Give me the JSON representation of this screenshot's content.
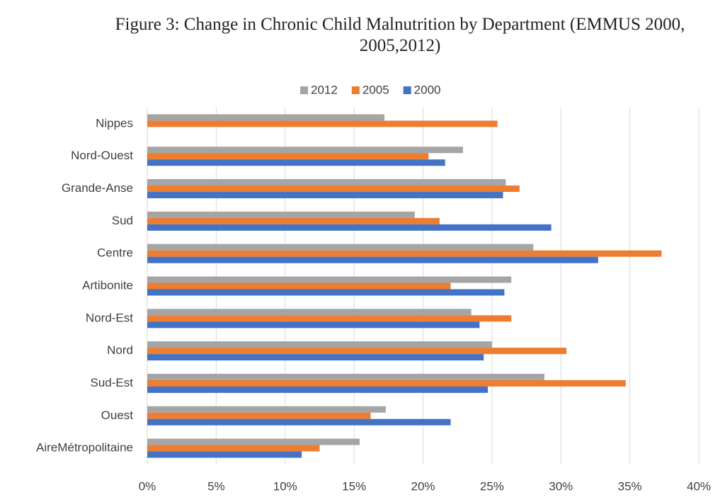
{
  "chart_data": {
    "type": "hbar",
    "title": "Figure 3:  Change in Chronic Child Malnutrition by Department (EMMUS 2000, 2005,2012)",
    "categories": [
      "Nippes",
      "Nord-Ouest",
      "Grande-Anse",
      "Sud",
      "Centre",
      "Artibonite",
      "Nord-Est",
      "Nord",
      "Sud-Est",
      "Ouest",
      "AireMétropolitaine"
    ],
    "series": [
      {
        "name": "2012",
        "color": "#a5a5a5",
        "values": [
          17.2,
          22.9,
          26.0,
          19.4,
          28.0,
          26.4,
          23.5,
          25.0,
          28.8,
          17.3,
          15.4
        ]
      },
      {
        "name": "2005",
        "color": "#ed7d31",
        "values": [
          25.4,
          20.4,
          27.0,
          21.2,
          37.3,
          22.0,
          26.4,
          30.4,
          34.7,
          16.2,
          12.5
        ]
      },
      {
        "name": "2000",
        "color": "#4472c4",
        "values": [
          null,
          21.6,
          25.8,
          29.3,
          32.7,
          25.9,
          24.1,
          24.4,
          24.7,
          22.0,
          11.2
        ]
      }
    ],
    "xlim": [
      0,
      40
    ],
    "xticks": [
      {
        "value": 0,
        "label": "0%"
      },
      {
        "value": 5,
        "label": "5%"
      },
      {
        "value": 10,
        "label": "10%"
      },
      {
        "value": 15,
        "label": "15%"
      },
      {
        "value": 20,
        "label": "20%"
      },
      {
        "value": 25,
        "label": "25%"
      },
      {
        "value": 30,
        "label": "30%"
      },
      {
        "value": 35,
        "label": "35%"
      },
      {
        "value": 40,
        "label": "40%"
      }
    ],
    "grid": true,
    "legend": "top"
  }
}
